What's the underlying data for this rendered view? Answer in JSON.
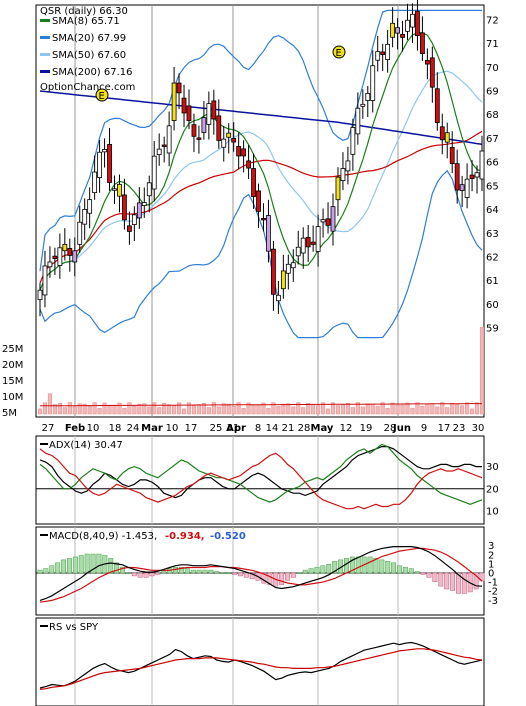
{
  "chart_data": [
    {
      "type": "candlestick",
      "title": "QSR (daily) 66.30",
      "watermark": "OptionChance.com",
      "ylim": [
        58.5,
        72.5
      ],
      "y_ticks": [
        59,
        60,
        61,
        62,
        63,
        64,
        65,
        66,
        67,
        68,
        69,
        70,
        71,
        72
      ],
      "x_tick_labels": [
        "27",
        "Feb",
        "10",
        "18",
        "24",
        "Mar",
        "10",
        "17",
        "25",
        "31",
        "Apr",
        "8",
        "14",
        "21",
        "28",
        "May",
        "12",
        "19",
        "28",
        "Jun",
        "9",
        "17",
        "23",
        "30"
      ],
      "legend": [
        {
          "name": "SMA(8) 65.71",
          "color": "#1a7f1a"
        },
        {
          "name": "SMA(20) 67.99",
          "color": "#2e7fd6"
        },
        {
          "name": "SMA(50) 67.60",
          "color": "#8fc6ee"
        },
        {
          "name": "SMA(200) 67.16",
          "color": "#0b129e"
        }
      ],
      "earnings_marker": "E",
      "close_anchors": [
        60.6,
        61.4,
        62.1,
        62.4,
        61.9,
        62.3,
        62.5,
        63.4,
        64.2,
        65.5,
        66.0,
        66.6,
        65.2,
        64.5,
        64.0,
        63.3,
        63.5,
        64.2,
        64.8,
        65.6,
        66.4,
        67.0,
        67.5,
        69.5,
        68.8,
        67.8,
        66.8,
        67.3,
        68.2,
        68.1,
        67.4,
        67.0,
        66.7,
        67.0,
        66.4,
        65.8,
        65.0,
        64.2,
        63.2,
        61.8,
        60.1,
        60.8,
        61.7,
        62.1,
        62.3,
        62.6,
        62.7,
        62.9,
        63.4,
        63.7,
        64.4,
        65.5,
        66.1,
        67.3,
        68.0,
        68.8,
        69.4,
        70.3,
        70.8,
        71.1,
        71.6,
        71.3,
        71.9,
        72.0,
        71.5,
        70.8,
        69.6,
        68.4,
        67.3,
        66.6,
        65.8,
        65.0,
        64.7,
        65.2,
        65.8,
        66.3
      ],
      "volume_axis": [
        "25M",
        "20M",
        "15M",
        "10M",
        "5M"
      ]
    },
    {
      "type": "line",
      "title": "ADX(14) 30.47",
      "y_ticks": [
        10,
        20,
        30
      ],
      "series": [
        {
          "color": "#000000",
          "values": [
            33,
            32,
            30,
            26,
            23,
            21,
            19,
            18,
            19,
            22,
            24,
            27,
            26,
            24,
            22,
            21,
            22,
            24,
            24,
            23,
            21,
            18,
            17,
            16,
            17,
            20,
            22,
            24,
            25,
            25,
            23,
            21,
            20,
            20,
            22,
            24,
            26,
            27,
            26,
            24,
            22,
            20,
            19,
            18,
            18,
            17,
            18,
            19,
            22,
            24,
            26,
            28,
            30,
            33,
            35,
            36,
            37,
            38,
            39,
            39,
            38,
            36,
            34,
            32,
            30,
            29,
            29,
            30,
            31,
            31,
            30,
            30,
            31,
            31,
            30,
            30
          ]
        },
        {
          "color": "#1a7f1a",
          "values": [
            31,
            29,
            26,
            23,
            20,
            20,
            22,
            25,
            27,
            29,
            28,
            27,
            25,
            24,
            27,
            29,
            30,
            29,
            27,
            26,
            25,
            27,
            29,
            31,
            33,
            32,
            30,
            28,
            27,
            26,
            25,
            25,
            24,
            23,
            22,
            20,
            18,
            16,
            15,
            14,
            15,
            17,
            19,
            20,
            21,
            23,
            24,
            25,
            24,
            26,
            28,
            30,
            33,
            35,
            37,
            38,
            36,
            38,
            40,
            39,
            36,
            33,
            31,
            29,
            26,
            24,
            22,
            20,
            18,
            17,
            16,
            15,
            14,
            13,
            14,
            15
          ]
        },
        {
          "color": "#d01010",
          "values": [
            38,
            36,
            35,
            33,
            30,
            27,
            26,
            23,
            20,
            18,
            17,
            18,
            20,
            22,
            21,
            20,
            19,
            18,
            16,
            15,
            14,
            15,
            16,
            17,
            19,
            21,
            22,
            24,
            26,
            27,
            26,
            25,
            24,
            25,
            26,
            28,
            30,
            31,
            33,
            35,
            36,
            34,
            31,
            29,
            26,
            23,
            20,
            17,
            15,
            14,
            13,
            12,
            11,
            11,
            12,
            11,
            12,
            13,
            12,
            12,
            13,
            13,
            15,
            18,
            22,
            25,
            27,
            28,
            29,
            28,
            28,
            29,
            28,
            27,
            26,
            25
          ]
        }
      ]
    },
    {
      "type": "bar+line",
      "title": "MACD(8,40,9) -1.453,",
      "signal_label": "-0.934,",
      "hist_label": "-0.520",
      "y_ticks": [
        3,
        2,
        1,
        0,
        -1,
        -2,
        -3
      ],
      "macd": [
        -3.0,
        -2.8,
        -2.5,
        -2.1,
        -1.7,
        -1.3,
        -0.9,
        -0.5,
        0.0,
        0.4,
        0.8,
        1.0,
        1.1,
        1.0,
        0.9,
        0.6,
        0.4,
        0.2,
        0.1,
        0.1,
        0.2,
        0.4,
        0.6,
        0.8,
        0.9,
        0.9,
        0.8,
        0.8,
        0.8,
        0.9,
        0.8,
        0.7,
        0.6,
        0.5,
        0.3,
        0.1,
        -0.1,
        -0.4,
        -0.8,
        -1.2,
        -1.6,
        -1.7,
        -1.6,
        -1.5,
        -1.3,
        -1.1,
        -0.9,
        -0.7,
        -0.5,
        -0.2,
        0.2,
        0.6,
        1.0,
        1.4,
        1.7,
        2.0,
        2.3,
        2.5,
        2.7,
        2.8,
        2.9,
        2.9,
        2.9,
        2.9,
        2.8,
        2.6,
        2.3,
        1.9,
        1.4,
        0.9,
        0.4,
        -0.2,
        -0.7,
        -1.1,
        -1.4,
        -1.45
      ],
      "signal": [
        -3.2,
        -3.1,
        -3.0,
        -2.8,
        -2.6,
        -2.3,
        -2.0,
        -1.7,
        -1.3,
        -0.9,
        -0.5,
        -0.2,
        0.1,
        0.3,
        0.5,
        0.6,
        0.6,
        0.5,
        0.4,
        0.3,
        0.3,
        0.3,
        0.3,
        0.4,
        0.5,
        0.6,
        0.6,
        0.6,
        0.6,
        0.7,
        0.7,
        0.7,
        0.6,
        0.6,
        0.5,
        0.4,
        0.3,
        0.1,
        -0.1,
        -0.4,
        -0.7,
        -0.9,
        -1.1,
        -1.2,
        -1.3,
        -1.3,
        -1.2,
        -1.1,
        -1.0,
        -0.8,
        -0.6,
        -0.3,
        0.0,
        0.3,
        0.6,
        0.9,
        1.2,
        1.5,
        1.8,
        2.0,
        2.2,
        2.4,
        2.5,
        2.6,
        2.7,
        2.7,
        2.6,
        2.5,
        2.3,
        2.0,
        1.6,
        1.2,
        0.7,
        0.2,
        -0.3,
        -0.9
      ]
    },
    {
      "type": "line",
      "title": "RS vs SPY",
      "series": [
        {
          "color": "#000000",
          "values": [
            20,
            22,
            25,
            24,
            23,
            26,
            30,
            36,
            42,
            48,
            52,
            55,
            50,
            46,
            44,
            42,
            44,
            48,
            52,
            56,
            60,
            64,
            68,
            75,
            72,
            66,
            62,
            64,
            66,
            65,
            60,
            58,
            57,
            60,
            58,
            55,
            52,
            48,
            44,
            38,
            32,
            34,
            38,
            40,
            42,
            43,
            42,
            44,
            46,
            48,
            52,
            58,
            62,
            66,
            70,
            74,
            76,
            78,
            80,
            82,
            84,
            82,
            84,
            85,
            83,
            80,
            76,
            72,
            68,
            64,
            60,
            56,
            54,
            56,
            58,
            60
          ]
        },
        {
          "color": "#cc0000",
          "values": [
            18,
            19,
            21,
            22,
            23,
            25,
            28,
            31,
            34,
            37,
            40,
            42,
            43,
            44,
            45,
            46,
            47,
            48,
            50,
            52,
            54,
            56,
            58,
            60,
            61,
            62,
            62,
            62,
            63,
            63,
            63,
            62,
            61,
            60,
            59,
            58,
            57,
            55,
            54,
            52,
            50,
            49,
            49,
            48,
            48,
            48,
            48,
            49,
            49,
            50,
            51,
            53,
            55,
            57,
            59,
            61,
            63,
            65,
            67,
            69,
            71,
            73,
            74,
            75,
            76,
            76,
            75,
            74,
            72,
            70,
            68,
            66,
            64,
            63,
            61,
            60
          ]
        }
      ]
    }
  ]
}
